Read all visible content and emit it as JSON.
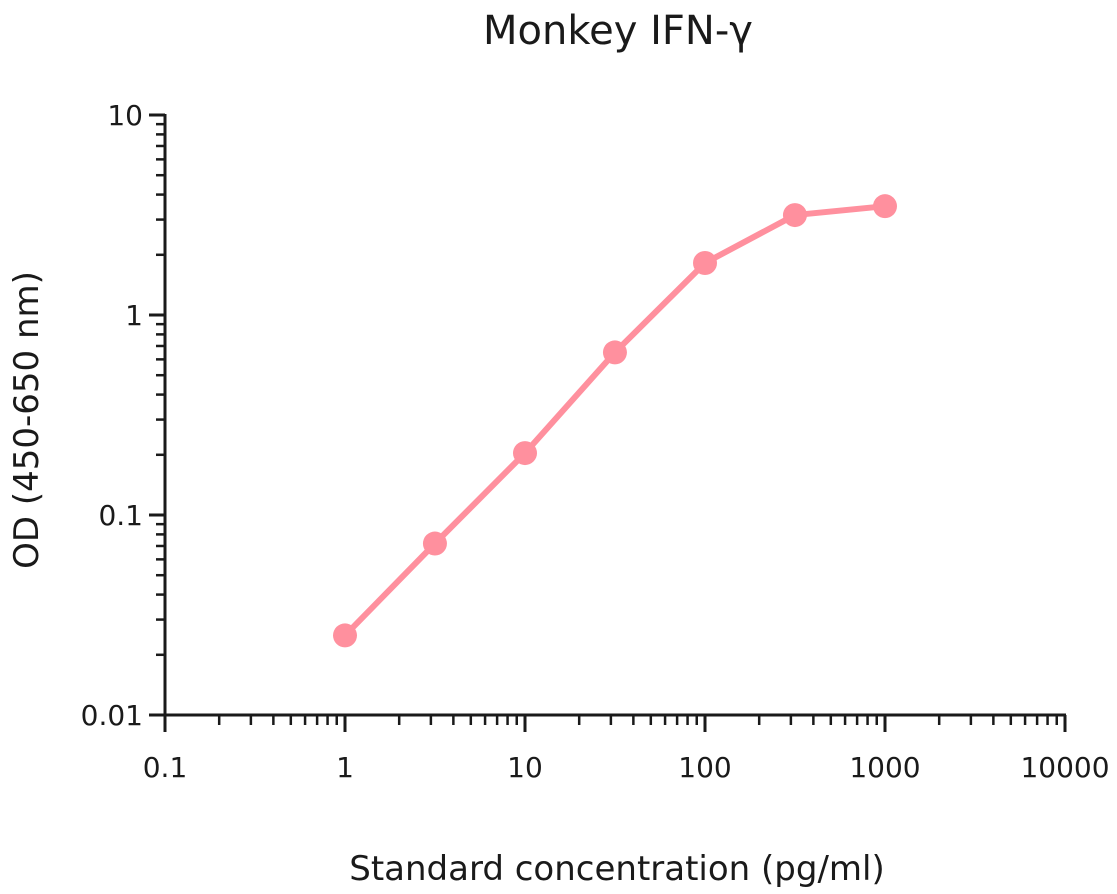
{
  "chart_data": {
    "type": "line",
    "title": "Monkey IFN-γ",
    "xlabel": "Standard concentration (pg/ml)",
    "ylabel": "OD (450-650 nm)",
    "x_scale": "log",
    "y_scale": "log",
    "xlim": [
      0.1,
      10000
    ],
    "ylim": [
      0.01,
      10
    ],
    "x_ticks": [
      "0.1",
      "1",
      "10",
      "100",
      "1000",
      "10000"
    ],
    "y_ticks": [
      "0.01",
      "0.1",
      "1",
      "10"
    ],
    "grid": false,
    "legend": null,
    "series": [
      {
        "name": "Monkey IFN-γ",
        "color": "#FF909E",
        "marker": "circle",
        "x": [
          1,
          3.16,
          10,
          31.6,
          100,
          316,
          1000
        ],
        "y": [
          0.025,
          0.072,
          0.204,
          0.65,
          1.82,
          3.16,
          3.5
        ]
      }
    ]
  }
}
